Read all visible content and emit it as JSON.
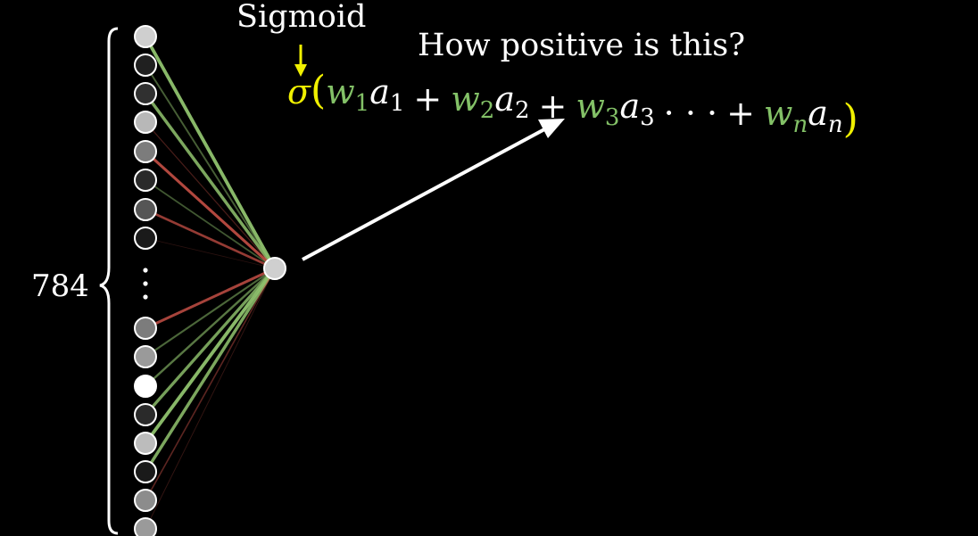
{
  "diagram": {
    "count_label": "784",
    "sigmoid_label": "Sigmoid",
    "question": "How positive is this?",
    "formula": {
      "sigma": "σ",
      "terms": [
        {
          "w": "w",
          "w_sub": "1",
          "a": "a",
          "a_sub": "1"
        },
        {
          "w": "w",
          "w_sub": "2",
          "a": "a",
          "a_sub": "2"
        },
        {
          "w": "w",
          "w_sub": "3",
          "a": "a",
          "a_sub": "3"
        },
        {
          "w": "w",
          "w_sub": "n",
          "a": "a",
          "a_sub": "n"
        }
      ],
      "ellipsis": "· · ·",
      "plus": "+",
      "lparen": "(",
      "rparen": ")"
    },
    "input_neurons": [
      {
        "shade": "#cfcfcf",
        "weight": "pos",
        "strength": 0.95
      },
      {
        "shade": "#202020",
        "weight": "pos",
        "strength": 0.4
      },
      {
        "shade": "#303030",
        "weight": "pos",
        "strength": 0.85
      },
      {
        "shade": "#b8b8b8",
        "weight": "neg",
        "strength": 0.2
      },
      {
        "shade": "#7c7c7c",
        "weight": "neg",
        "strength": 0.75
      },
      {
        "shade": "#2a2a2a",
        "weight": "pos",
        "strength": 0.35
      },
      {
        "shade": "#555555",
        "weight": "neg",
        "strength": 0.6
      },
      {
        "shade": "#1a1a1a",
        "weight": "neg",
        "strength": 0.05
      },
      {
        "shade": "#7c7c7c",
        "weight": "neg",
        "strength": 0.7
      },
      {
        "shade": "#9a9a9a",
        "weight": "pos",
        "strength": 0.45
      },
      {
        "shade": "#ffffff",
        "weight": "pos",
        "strength": 0.55
      },
      {
        "shade": "#2a2a2a",
        "weight": "pos",
        "strength": 0.8
      },
      {
        "shade": "#bcbcbc",
        "weight": "pos",
        "strength": 0.95
      },
      {
        "shade": "#1a1a1a",
        "weight": "pos",
        "strength": 0.85
      },
      {
        "shade": "#8c8c8c",
        "weight": "neg",
        "strength": 0.3
      },
      {
        "shade": "#9a9a9a",
        "weight": "neg",
        "strength": 0.1
      }
    ],
    "output_neuron_shade": "#cfcfcf",
    "colors": {
      "background": "#000000",
      "positive_weight": "#8ec06c",
      "negative_weight": "#e05a4f",
      "sigma_yellow": "#f0f000",
      "weight_green": "#83c167",
      "text": "#ffffff"
    }
  }
}
